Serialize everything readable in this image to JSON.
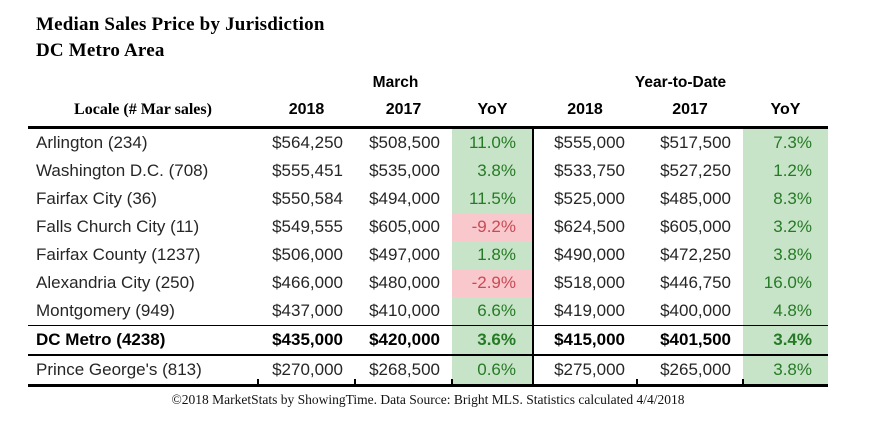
{
  "title": "Median Sales Price by Jurisdiction",
  "subtitle": "DC Metro Area",
  "table": {
    "group_headers": {
      "march": "March",
      "ytd": "Year-to-Date"
    },
    "locale_header": {
      "bold": "Locale",
      "rest": " (# Mar sales)"
    },
    "column_headers": [
      "2018",
      "2017",
      "YoY",
      "2018",
      "2017",
      "YoY"
    ],
    "rows": [
      {
        "locale": "Arlington (234)",
        "mar_2018": "$564,250",
        "mar_2017": "$508,500",
        "mar_yoy": "11.0%",
        "ytd_2018": "$555,000",
        "ytd_2017": "$517,500",
        "ytd_yoy": "7.3%",
        "emphasis": false
      },
      {
        "locale": "Washington D.C. (708)",
        "mar_2018": "$555,451",
        "mar_2017": "$535,000",
        "mar_yoy": "3.8%",
        "ytd_2018": "$533,750",
        "ytd_2017": "$527,250",
        "ytd_yoy": "1.2%",
        "emphasis": false
      },
      {
        "locale": "Fairfax City (36)",
        "mar_2018": "$550,584",
        "mar_2017": "$494,000",
        "mar_yoy": "11.5%",
        "ytd_2018": "$525,000",
        "ytd_2017": "$485,000",
        "ytd_yoy": "8.3%",
        "emphasis": false
      },
      {
        "locale": "Falls Church City (11)",
        "mar_2018": "$549,555",
        "mar_2017": "$605,000",
        "mar_yoy": "-9.2%",
        "ytd_2018": "$624,500",
        "ytd_2017": "$605,000",
        "ytd_yoy": "3.2%",
        "emphasis": false
      },
      {
        "locale": "Fairfax County (1237)",
        "mar_2018": "$506,000",
        "mar_2017": "$497,000",
        "mar_yoy": "1.8%",
        "ytd_2018": "$490,000",
        "ytd_2017": "$472,250",
        "ytd_yoy": "3.8%",
        "emphasis": false
      },
      {
        "locale": "Alexandria City (250)",
        "mar_2018": "$466,000",
        "mar_2017": "$480,000",
        "mar_yoy": "-2.9%",
        "ytd_2018": "$518,000",
        "ytd_2017": "$446,750",
        "ytd_yoy": "16.0%",
        "emphasis": false
      },
      {
        "locale": "Montgomery (949)",
        "mar_2018": "$437,000",
        "mar_2017": "$410,000",
        "mar_yoy": "6.6%",
        "ytd_2018": "$419,000",
        "ytd_2017": "$400,000",
        "ytd_yoy": "4.8%",
        "emphasis": false
      },
      {
        "locale": "DC Metro (4238)",
        "mar_2018": "$435,000",
        "mar_2017": "$420,000",
        "mar_yoy": "3.6%",
        "ytd_2018": "$415,000",
        "ytd_2017": "$401,500",
        "ytd_yoy": "3.4%",
        "emphasis": true
      },
      {
        "locale": "Prince George's (813)",
        "mar_2018": "$270,000",
        "mar_2017": "$268,500",
        "mar_yoy": "0.6%",
        "ytd_2018": "$275,000",
        "ytd_2017": "$265,000",
        "ytd_yoy": "3.8%",
        "emphasis": false
      }
    ]
  },
  "footer": "©2018 MarketStats by ShowingTime. Data Source: Bright MLS. Statistics calculated 4/4/2018",
  "colors": {
    "positive_bg": "#c8e4c8",
    "positive_text": "#257a25",
    "negative_bg": "#f8c8cd",
    "negative_text": "#c94a54"
  }
}
